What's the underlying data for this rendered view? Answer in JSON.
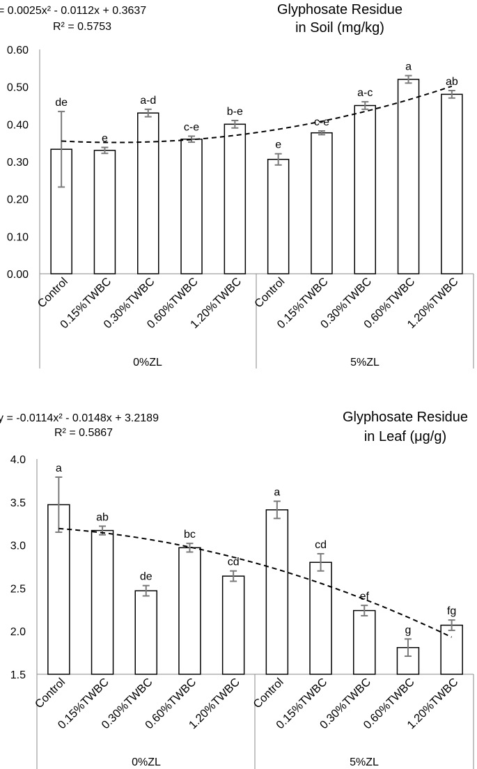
{
  "chart_data": [
    {
      "type": "bar",
      "title": [
        "Glyphosate Residue",
        "in Soil (mg/kg)"
      ],
      "equation": "= 0.0025x² - 0.0112x + 0.3637",
      "r2": "R² = 0.5753",
      "groups": [
        "0%ZL",
        "5%ZL"
      ],
      "categories": [
        "Control",
        "0.15%TWBC",
        "0.30%TWBC",
        "0.60%TWBC",
        "1.20%TWBC",
        "Control",
        "0.15%TWBC",
        "0.30%TWBC",
        "0.60%TWBC",
        "1.20%TWBC"
      ],
      "values": [
        0.333,
        0.33,
        0.43,
        0.36,
        0.4,
        0.306,
        0.377,
        0.45,
        0.52,
        0.48
      ],
      "errors": [
        0.101,
        0.008,
        0.01,
        0.008,
        0.01,
        0.015,
        0.005,
        0.01,
        0.01,
        0.01
      ],
      "letters": [
        "de",
        "e",
        "a-d",
        "c-e",
        "b-e",
        "e",
        "c-e",
        "a-c",
        "a",
        "ab"
      ],
      "trendline": {
        "a": 0.0025,
        "b": -0.0112,
        "c": 0.3637
      },
      "yticks": [
        "0.00",
        "0.10",
        "0.20",
        "0.30",
        "0.40",
        "0.50",
        "0.60"
      ],
      "ylim": [
        0,
        0.6
      ]
    },
    {
      "type": "bar",
      "title": [
        "Glyphosate Residue",
        "in Leaf (μg/g)"
      ],
      "equation": "y = -0.0114x² - 0.0148x + 3.2189",
      "r2": "R² = 0.5867",
      "groups": [
        "0%ZL",
        "5%ZL"
      ],
      "categories": [
        "Control",
        "0.15%TWBC",
        "0.30%TWBC",
        "0.60%TWBC",
        "1.20%TWBC",
        "Control",
        "0.15%TWBC",
        "0.30%TWBC",
        "0.60%TWBC",
        "1.20%TWBC"
      ],
      "values": [
        3.47,
        3.17,
        2.47,
        2.97,
        2.64,
        3.41,
        2.8,
        2.24,
        1.81,
        2.07
      ],
      "errors": [
        0.32,
        0.05,
        0.06,
        0.05,
        0.06,
        0.1,
        0.1,
        0.06,
        0.1,
        0.06
      ],
      "letters": [
        "a",
        "ab",
        "de",
        "bc",
        "cd",
        "a",
        "cd",
        "ef",
        "g",
        "fg"
      ],
      "trendline": {
        "a": -0.0114,
        "b": -0.0148,
        "c": 3.2189
      },
      "yticks": [
        "1.5",
        "2.0",
        "2.5",
        "3.0",
        "3.5",
        "4.0"
      ],
      "ylim": [
        1.5,
        4.0
      ]
    }
  ]
}
